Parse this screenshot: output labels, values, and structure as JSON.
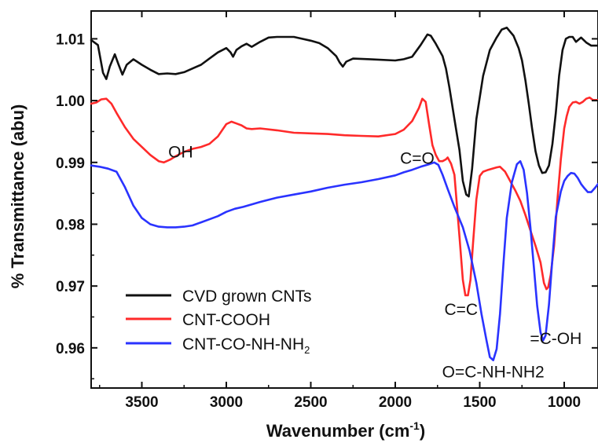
{
  "chart_data": {
    "type": "line",
    "xlabel": "Wavenumber (cm",
    "xlabel_sup": "-1",
    "xlabel_close": ")",
    "ylabel": "% Transmittance (abu)",
    "xlim": [
      3800,
      800
    ],
    "ylim": [
      0.9535,
      1.0145
    ],
    "x_reversed": true,
    "grid": false,
    "legend_position": "lower-left",
    "x_ticks": [
      3500,
      3000,
      2500,
      2000,
      1500,
      1000
    ],
    "x_tick_labels": [
      "3500",
      "3000",
      "2500",
      "2000",
      "1500",
      "1000"
    ],
    "y_ticks": [
      0.96,
      0.97,
      0.98,
      0.99,
      1.0,
      1.01
    ],
    "y_tick_labels": [
      "0.96",
      "0.97",
      "0.98",
      "0.99",
      "1.00",
      "1.01"
    ],
    "series": [
      {
        "name": "CVD grown CNTs",
        "color": "#111111",
        "points": [
          [
            3800,
            1.0098
          ],
          [
            3760,
            1.009
          ],
          [
            3730,
            1.0045
          ],
          [
            3710,
            1.0035
          ],
          [
            3690,
            1.0055
          ],
          [
            3660,
            1.0075
          ],
          [
            3640,
            1.006
          ],
          [
            3615,
            1.0042
          ],
          [
            3590,
            1.0058
          ],
          [
            3550,
            1.0067
          ],
          [
            3500,
            1.0058
          ],
          [
            3450,
            1.005
          ],
          [
            3400,
            1.0043
          ],
          [
            3350,
            1.0044
          ],
          [
            3300,
            1.0043
          ],
          [
            3250,
            1.0046
          ],
          [
            3200,
            1.0052
          ],
          [
            3150,
            1.0058
          ],
          [
            3100,
            1.0068
          ],
          [
            3050,
            1.0078
          ],
          [
            3000,
            1.0085
          ],
          [
            2975,
            1.0078
          ],
          [
            2960,
            1.0071
          ],
          [
            2940,
            1.0082
          ],
          [
            2910,
            1.0088
          ],
          [
            2880,
            1.0092
          ],
          [
            2850,
            1.0087
          ],
          [
            2800,
            1.0095
          ],
          [
            2750,
            1.0102
          ],
          [
            2700,
            1.0103
          ],
          [
            2600,
            1.0103
          ],
          [
            2500,
            1.0097
          ],
          [
            2450,
            1.0093
          ],
          [
            2400,
            1.0085
          ],
          [
            2350,
            1.0072
          ],
          [
            2330,
            1.0062
          ],
          [
            2310,
            1.0055
          ],
          [
            2290,
            1.0063
          ],
          [
            2250,
            1.0068
          ],
          [
            2150,
            1.0067
          ],
          [
            2000,
            1.0065
          ],
          [
            1950,
            1.0067
          ],
          [
            1900,
            1.0071
          ],
          [
            1850,
            1.009
          ],
          [
            1810,
            1.0107
          ],
          [
            1790,
            1.0105
          ],
          [
            1760,
            1.0092
          ],
          [
            1720,
            1.0072
          ],
          [
            1700,
            1.0052
          ],
          [
            1680,
            1.0022
          ],
          [
            1650,
            0.997
          ],
          [
            1620,
            0.992
          ],
          [
            1600,
            0.987
          ],
          [
            1580,
            0.9848
          ],
          [
            1565,
            0.9845
          ],
          [
            1545,
            0.989
          ],
          [
            1520,
            0.997
          ],
          [
            1480,
            1.004
          ],
          [
            1440,
            1.0082
          ],
          [
            1400,
            1.0102
          ],
          [
            1370,
            1.0115
          ],
          [
            1340,
            1.0118
          ],
          [
            1300,
            1.0105
          ],
          [
            1270,
            1.0085
          ],
          [
            1250,
            1.0065
          ],
          [
            1230,
            1.0033
          ],
          [
            1210,
            0.9995
          ],
          [
            1190,
            0.9955
          ],
          [
            1170,
            0.9918
          ],
          [
            1150,
            0.9895
          ],
          [
            1130,
            0.9883
          ],
          [
            1110,
            0.9884
          ],
          [
            1090,
            0.9895
          ],
          [
            1070,
            0.993
          ],
          [
            1050,
            0.998
          ],
          [
            1030,
            1.004
          ],
          [
            1010,
            1.0082
          ],
          [
            990,
            1.01
          ],
          [
            970,
            1.0103
          ],
          [
            950,
            1.0103
          ],
          [
            930,
            1.0095
          ],
          [
            900,
            1.0102
          ],
          [
            870,
            1.0094
          ],
          [
            840,
            1.0089
          ],
          [
            800,
            1.0089
          ]
        ]
      },
      {
        "name": "CNT-COOH",
        "color": "#ff2a2a",
        "points": [
          [
            3800,
            0.9995
          ],
          [
            3770,
            0.9997
          ],
          [
            3740,
            1.0002
          ],
          [
            3710,
            1.0003
          ],
          [
            3680,
            0.9995
          ],
          [
            3650,
            0.998
          ],
          [
            3600,
            0.9957
          ],
          [
            3550,
            0.9938
          ],
          [
            3500,
            0.9925
          ],
          [
            3450,
            0.9912
          ],
          [
            3400,
            0.9902
          ],
          [
            3370,
            0.99
          ],
          [
            3330,
            0.9905
          ],
          [
            3300,
            0.991
          ],
          [
            3250,
            0.9917
          ],
          [
            3200,
            0.9922
          ],
          [
            3150,
            0.9925
          ],
          [
            3100,
            0.993
          ],
          [
            3050,
            0.9942
          ],
          [
            3000,
            0.9962
          ],
          [
            2970,
            0.9966
          ],
          [
            2940,
            0.9963
          ],
          [
            2910,
            0.996
          ],
          [
            2880,
            0.9955
          ],
          [
            2850,
            0.9954
          ],
          [
            2800,
            0.9955
          ],
          [
            2700,
            0.9952
          ],
          [
            2600,
            0.9948
          ],
          [
            2500,
            0.9947
          ],
          [
            2400,
            0.9946
          ],
          [
            2300,
            0.9944
          ],
          [
            2200,
            0.9943
          ],
          [
            2100,
            0.9942
          ],
          [
            2000,
            0.9946
          ],
          [
            1950,
            0.9953
          ],
          [
            1900,
            0.9967
          ],
          [
            1860,
            0.9988
          ],
          [
            1840,
            1.0003
          ],
          [
            1820,
            0.9998
          ],
          [
            1800,
            0.9962
          ],
          [
            1780,
            0.9928
          ],
          [
            1760,
            0.9912
          ],
          [
            1740,
            0.9902
          ],
          [
            1720,
            0.9902
          ],
          [
            1700,
            0.9905
          ],
          [
            1690,
            0.9908
          ],
          [
            1670,
            0.9898
          ],
          [
            1650,
            0.988
          ],
          [
            1620,
            0.978
          ],
          [
            1600,
            0.971
          ],
          [
            1585,
            0.9685
          ],
          [
            1570,
            0.9685
          ],
          [
            1555,
            0.971
          ],
          [
            1540,
            0.9768
          ],
          [
            1520,
            0.984
          ],
          [
            1500,
            0.9878
          ],
          [
            1480,
            0.9885
          ],
          [
            1450,
            0.9888
          ],
          [
            1400,
            0.9892
          ],
          [
            1380,
            0.9893
          ],
          [
            1350,
            0.9885
          ],
          [
            1320,
            0.987
          ],
          [
            1290,
            0.9855
          ],
          [
            1260,
            0.9838
          ],
          [
            1230,
            0.9815
          ],
          [
            1200,
            0.979
          ],
          [
            1170,
            0.9765
          ],
          [
            1140,
            0.9738
          ],
          [
            1120,
            0.9705
          ],
          [
            1105,
            0.9695
          ],
          [
            1095,
            0.9698
          ],
          [
            1080,
            0.9718
          ],
          [
            1060,
            0.9765
          ],
          [
            1040,
            0.984
          ],
          [
            1020,
            0.9905
          ],
          [
            1000,
            0.9955
          ],
          [
            985,
            0.9975
          ],
          [
            970,
            0.999
          ],
          [
            950,
            0.9997
          ],
          [
            930,
            0.9998
          ],
          [
            910,
            0.9995
          ],
          [
            890,
            0.9998
          ],
          [
            870,
            1.0003
          ],
          [
            850,
            1.0005
          ],
          [
            830,
            1.0001
          ],
          [
            800,
            1.0001
          ]
        ]
      },
      {
        "name": "CNT-CO-NH-NH₂",
        "color": "#2a33ff",
        "points": [
          [
            3800,
            0.9895
          ],
          [
            3750,
            0.9893
          ],
          [
            3700,
            0.989
          ],
          [
            3650,
            0.9885
          ],
          [
            3600,
            0.986
          ],
          [
            3550,
            0.983
          ],
          [
            3500,
            0.981
          ],
          [
            3450,
            0.98
          ],
          [
            3400,
            0.9796
          ],
          [
            3350,
            0.9795
          ],
          [
            3300,
            0.9795
          ],
          [
            3250,
            0.9796
          ],
          [
            3200,
            0.9798
          ],
          [
            3150,
            0.9803
          ],
          [
            3100,
            0.9808
          ],
          [
            3050,
            0.9813
          ],
          [
            3000,
            0.982
          ],
          [
            2950,
            0.9825
          ],
          [
            2900,
            0.9828
          ],
          [
            2850,
            0.9832
          ],
          [
            2800,
            0.9836
          ],
          [
            2700,
            0.9843
          ],
          [
            2600,
            0.9848
          ],
          [
            2500,
            0.9853
          ],
          [
            2400,
            0.9859
          ],
          [
            2300,
            0.9864
          ],
          [
            2200,
            0.9868
          ],
          [
            2100,
            0.9873
          ],
          [
            2000,
            0.9879
          ],
          [
            1950,
            0.9884
          ],
          [
            1900,
            0.9888
          ],
          [
            1850,
            0.9893
          ],
          [
            1800,
            0.9897
          ],
          [
            1770,
            0.99
          ],
          [
            1745,
            0.9896
          ],
          [
            1720,
            0.988
          ],
          [
            1690,
            0.9857
          ],
          [
            1650,
            0.9828
          ],
          [
            1600,
            0.9795
          ],
          [
            1560,
            0.9757
          ],
          [
            1520,
            0.9705
          ],
          [
            1490,
            0.9655
          ],
          [
            1460,
            0.9612
          ],
          [
            1440,
            0.9585
          ],
          [
            1420,
            0.958
          ],
          [
            1400,
            0.9598
          ],
          [
            1380,
            0.9655
          ],
          [
            1360,
            0.9735
          ],
          [
            1340,
            0.981
          ],
          [
            1310,
            0.9868
          ],
          [
            1280,
            0.9897
          ],
          [
            1260,
            0.9902
          ],
          [
            1240,
            0.9888
          ],
          [
            1220,
            0.985
          ],
          [
            1200,
            0.9795
          ],
          [
            1180,
            0.9732
          ],
          [
            1160,
            0.9668
          ],
          [
            1140,
            0.9625
          ],
          [
            1125,
            0.9612
          ],
          [
            1110,
            0.962
          ],
          [
            1090,
            0.967
          ],
          [
            1070,
            0.9745
          ],
          [
            1050,
            0.9812
          ],
          [
            1020,
            0.9853
          ],
          [
            1000,
            0.987
          ],
          [
            980,
            0.9878
          ],
          [
            960,
            0.9883
          ],
          [
            940,
            0.9882
          ],
          [
            920,
            0.9875
          ],
          [
            900,
            0.9865
          ],
          [
            880,
            0.9858
          ],
          [
            860,
            0.9852
          ],
          [
            840,
            0.9852
          ],
          [
            820,
            0.9858
          ],
          [
            800,
            0.9865
          ]
        ]
      }
    ],
    "annotations": [
      {
        "text": "OH",
        "x": 3270,
        "y": 0.9908
      },
      {
        "text": "C=O",
        "x": 1870,
        "y": 0.9898
      },
      {
        "text": "C=C",
        "x": 1610,
        "y": 0.9653
      },
      {
        "text": "=C-OH",
        "x": 1050,
        "y": 0.9606
      },
      {
        "text": "O=C-NH-NH2",
        "x": 1420,
        "y": 0.9552
      }
    ],
    "legend": [
      {
        "text": "CVD grown CNTs",
        "color": "#111111"
      },
      {
        "text": "CNT-COOH",
        "color": "#ff2a2a"
      },
      {
        "text": "CNT-CO-NH-NH",
        "sub": "2",
        "color": "#2a33ff"
      }
    ]
  }
}
